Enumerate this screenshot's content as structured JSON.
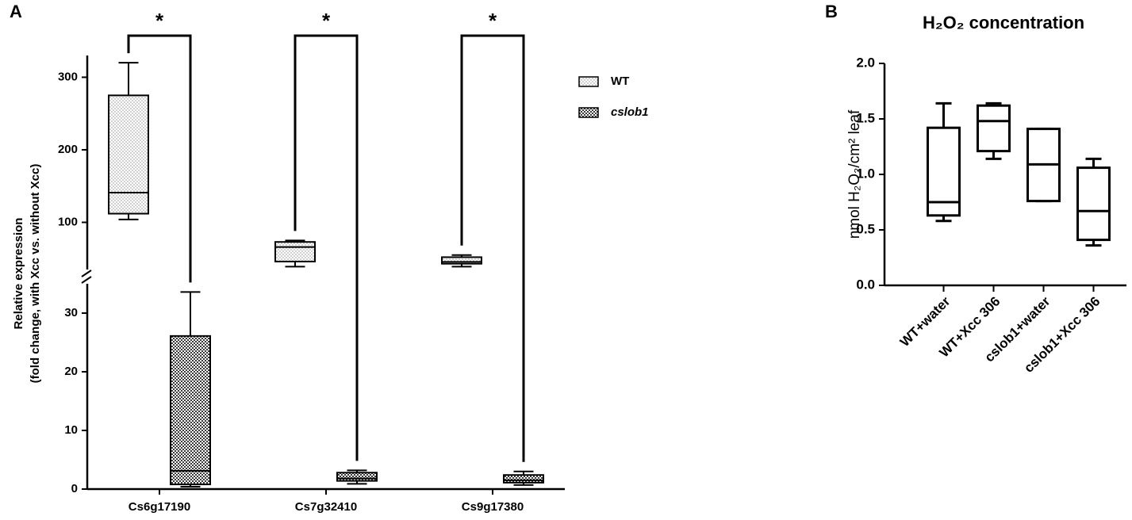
{
  "chart_data": [
    {
      "type": "box",
      "panel_label": "A",
      "y_label": [
        "Relative expression",
        "(fold change, with Xcc vs. without Xcc)"
      ],
      "categories": [
        "Cs6g17190",
        "Cs7g32410",
        "Cs9g17380"
      ],
      "series": [
        {
          "name": "WT",
          "color": "#8a8a8a",
          "pattern": "dots",
          "font_style": "normal",
          "min": [
            104,
            39,
            39
          ],
          "q1": [
            112,
            46,
            43
          ],
          "median": [
            141,
            66,
            45.5
          ],
          "q3": [
            275,
            73,
            52
          ],
          "max": [
            320,
            75,
            55
          ]
        },
        {
          "name": "cslob1",
          "color": "#3a3a3a",
          "pattern": "checker",
          "font_style": "italic",
          "min": [
            0.4,
            0.9,
            0.7
          ],
          "q1": [
            0.8,
            1.4,
            1.1
          ],
          "median": [
            3.1,
            1.8,
            1.5
          ],
          "q3": [
            26.1,
            2.8,
            2.4
          ],
          "max": [
            33.6,
            3.2,
            3.0
          ]
        }
      ],
      "y_segments": [
        {
          "ylim": [
            0,
            35
          ],
          "yticks": [
            0,
            10,
            20,
            30
          ]
        },
        {
          "ylim": [
            35,
            330
          ],
          "yticks": [
            100,
            200,
            300
          ]
        }
      ],
      "significance": [
        "*",
        "*",
        "*"
      ],
      "legend": "right"
    },
    {
      "type": "box",
      "panel_label": "B",
      "title": "H₂O₂ concentration",
      "y_label": "nmol H₂O₂/cm² leaf",
      "categories": [
        "WT+water",
        "WT+Xcc 306",
        "cslob1+water",
        "cslob1+Xcc 306"
      ],
      "series": [
        {
          "color": "#000000",
          "min": [
            0.58,
            1.14,
            0.76,
            0.36
          ],
          "q1": [
            0.63,
            1.21,
            0.76,
            0.41
          ],
          "median": [
            0.75,
            1.48,
            1.09,
            0.67
          ],
          "q3": [
            1.42,
            1.62,
            1.41,
            1.06
          ],
          "max": [
            1.64,
            1.64,
            1.41,
            1.14
          ]
        }
      ],
      "ylim": [
        0,
        2
      ],
      "yticks": [
        {
          "value": 0,
          "label": "0.0"
        },
        0.5,
        {
          "value": 1,
          "label": "1.0"
        },
        1.5,
        {
          "value": 2,
          "label": "2.0"
        }
      ]
    }
  ]
}
